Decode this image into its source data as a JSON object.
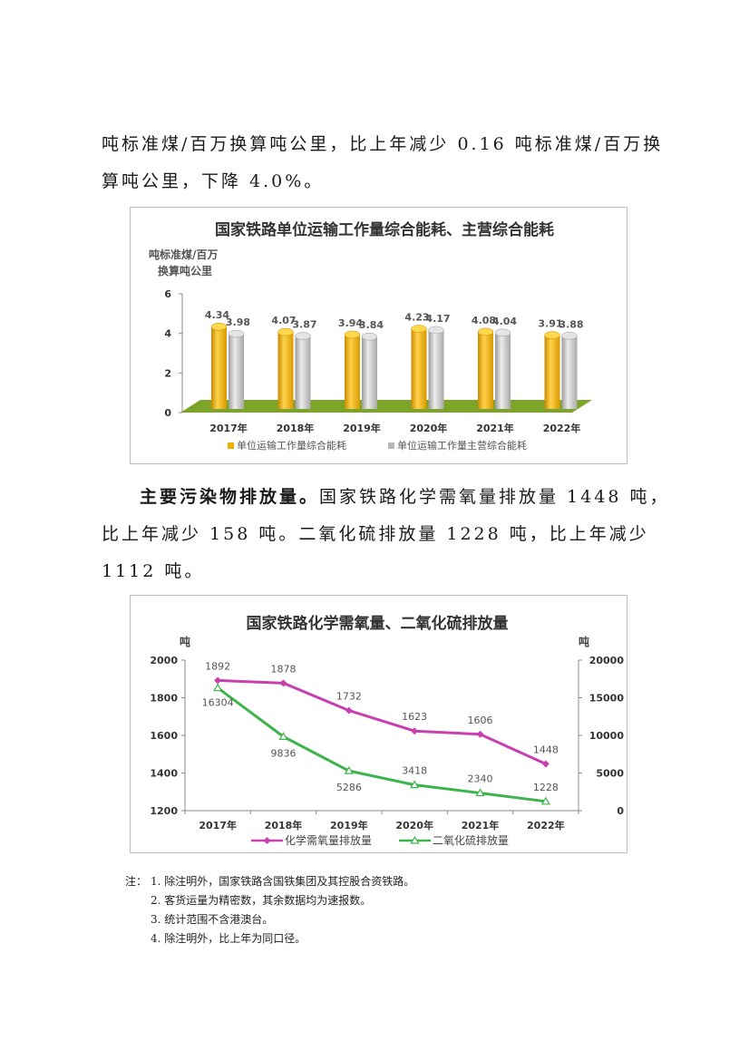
{
  "paragraph1": {
    "line1": "吨标准煤/百万换算吨公里，比上年减少 0.16 吨标准煤/百万换",
    "line2": "算吨公里，下降 4.0%。"
  },
  "chart1": {
    "title": "国家铁路单位运输工作量综合能耗、主营综合能耗",
    "y_label_line1": "吨标准煤/百万",
    "y_label_line2": "换算吨公里",
    "legend1": "单位运输工作量综合能耗",
    "legend2": "单位运输工作量主营综合能耗"
  },
  "paragraph2": {
    "bold": "主要污染物排放量。",
    "line1_rest": "国家铁路化学需氧量排放量 1448 吨，",
    "line2": "比上年减少 158 吨。二氧化硫排放量 1228 吨，比上年减少",
    "line3": "1112 吨。"
  },
  "chart2": {
    "title": "国家铁路化学需氧量、二氧化硫排放量",
    "y_left_unit": "吨",
    "y_right_unit": "吨",
    "legend1": "化学需氧量排放量",
    "legend2": "二氧化硫排放量"
  },
  "notes": {
    "lead": "注：",
    "items": [
      "1. 除注明外，国家铁路含国铁集团及其控股合资铁路。",
      "2. 客货运量为精密数，其余数据均为速报数。",
      "3. 统计范围不含港澳台。",
      "4. 除注明外，比上年为同口径。"
    ]
  },
  "chart_data": [
    {
      "type": "bar",
      "title": "国家铁路单位运输工作量综合能耗、主营综合能耗",
      "ylabel": "吨标准煤/百万换算吨公里",
      "categories": [
        "2017年",
        "2018年",
        "2019年",
        "2020年",
        "2021年",
        "2022年"
      ],
      "ylim": [
        0,
        6
      ],
      "yticks": [
        0,
        2,
        4,
        6
      ],
      "series": [
        {
          "name": "单位运输工作量综合能耗",
          "values": [
            4.34,
            4.07,
            3.94,
            4.23,
            4.08,
            3.91
          ],
          "color": "#f0b000"
        },
        {
          "name": "单位运输工作量主营综合能耗",
          "values": [
            3.98,
            3.87,
            3.84,
            4.17,
            4.04,
            3.88
          ],
          "color": "#b8b8b8"
        }
      ],
      "floor_color": "#7ba428",
      "legend_position": "bottom"
    },
    {
      "type": "line",
      "title": "国家铁路化学需氧量、二氧化硫排放量",
      "categories": [
        "2017年",
        "2018年",
        "2019年",
        "2020年",
        "2021年",
        "2022年"
      ],
      "y_left": {
        "unit": "吨",
        "lim": [
          1200,
          2000
        ],
        "ticks": [
          1200,
          1400,
          1600,
          1800,
          2000
        ]
      },
      "y_right": {
        "unit": "吨",
        "lim": [
          0,
          20000
        ],
        "ticks": [
          0,
          5000,
          10000,
          15000,
          20000
        ]
      },
      "series": [
        {
          "name": "化学需氧量排放量",
          "axis": "left",
          "values": [
            1892,
            1878,
            1732,
            1623,
            1606,
            1448
          ],
          "color": "#c83fb0",
          "marker": "diamond"
        },
        {
          "name": "二氧化硫排放量",
          "axis": "right",
          "values": [
            16304,
            9836,
            5286,
            3418,
            2340,
            1228
          ],
          "color": "#3cb44b",
          "marker": "triangle"
        }
      ],
      "legend_position": "bottom"
    }
  ]
}
